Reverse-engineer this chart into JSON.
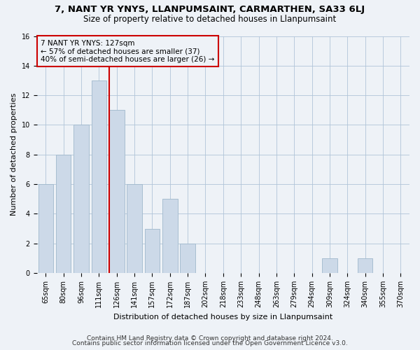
{
  "title1": "7, NANT YR YNYS, LLANPUMSAINT, CARMARTHEN, SA33 6LJ",
  "title2": "Size of property relative to detached houses in Llanpumsaint",
  "xlabel": "Distribution of detached houses by size in Llanpumsaint",
  "ylabel": "Number of detached properties",
  "bins": [
    "65sqm",
    "80sqm",
    "96sqm",
    "111sqm",
    "126sqm",
    "141sqm",
    "157sqm",
    "172sqm",
    "187sqm",
    "202sqm",
    "218sqm",
    "233sqm",
    "248sqm",
    "263sqm",
    "279sqm",
    "294sqm",
    "309sqm",
    "324sqm",
    "340sqm",
    "355sqm",
    "370sqm"
  ],
  "values": [
    6,
    8,
    10,
    13,
    11,
    6,
    3,
    5,
    2,
    0,
    0,
    0,
    0,
    0,
    0,
    0,
    1,
    0,
    1,
    0,
    0
  ],
  "bar_color": "#ccd9e8",
  "bar_edge_color": "#a0b8cc",
  "highlight_line_color": "#cc0000",
  "annotation_line1": "7 NANT YR YNYS: 127sqm",
  "annotation_line2": "← 57% of detached houses are smaller (37)",
  "annotation_line3": "40% of semi-detached houses are larger (26) →",
  "annotation_box_color": "#cc0000",
  "ylim": [
    0,
    16
  ],
  "yticks": [
    0,
    2,
    4,
    6,
    8,
    10,
    12,
    14,
    16
  ],
  "footer1": "Contains HM Land Registry data © Crown copyright and database right 2024.",
  "footer2": "Contains public sector information licensed under the Open Government Licence v3.0.",
  "bg_color": "#eef2f7",
  "title1_fontsize": 9.5,
  "title2_fontsize": 8.5,
  "annotation_fontsize": 7.5,
  "tick_fontsize": 7,
  "ylabel_fontsize": 8,
  "xlabel_fontsize": 8,
  "footer_fontsize": 6.5
}
